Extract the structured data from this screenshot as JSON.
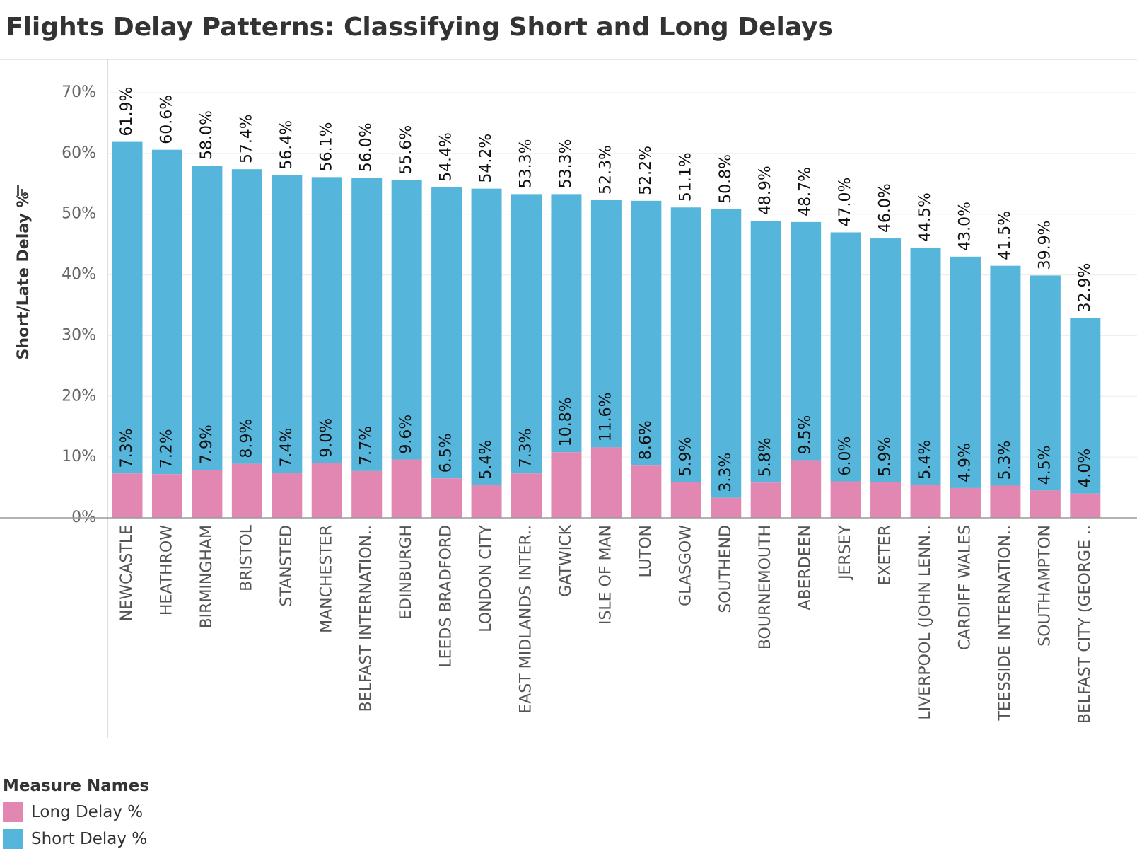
{
  "title": "Flights Delay Patterns: Classifying Short and Long Delays",
  "legend": {
    "title": "Measure Names",
    "items": [
      {
        "label": "Long Delay %",
        "color": "#e287b2"
      },
      {
        "label": "Short Delay %",
        "color": "#55b5db"
      }
    ]
  },
  "chart_data": {
    "type": "bar",
    "stacked": true,
    "ylabel": "Short/Late Delay %",
    "ylim": [
      0,
      70
    ],
    "yticks": [
      "0%",
      "10%",
      "20%",
      "30%",
      "40%",
      "50%",
      "60%",
      "70%"
    ],
    "ytick_values": [
      0,
      10,
      20,
      30,
      40,
      50,
      60,
      70
    ],
    "grid": true,
    "legend_position": "bottom-left",
    "categories": [
      "NEWCASTLE",
      "HEATHROW",
      "BIRMINGHAM",
      "BRISTOL",
      "STANSTED",
      "MANCHESTER",
      "BELFAST INTERNATION..",
      "EDINBURGH",
      "LEEDS BRADFORD",
      "LONDON CITY",
      "EAST MIDLANDS INTER..",
      "GATWICK",
      "ISLE OF MAN",
      "LUTON",
      "GLASGOW",
      "SOUTHEND",
      "BOURNEMOUTH",
      "ABERDEEN",
      "JERSEY",
      "EXETER",
      "LIVERPOOL (JOHN LENN..",
      "CARDIFF WALES",
      "TEESSIDE INTERNATION..",
      "SOUTHAMPTON",
      "BELFAST CITY (GEORGE .."
    ],
    "series": [
      {
        "name": "Long Delay %",
        "color": "#e287b2",
        "values": [
          7.3,
          7.2,
          7.9,
          8.9,
          7.4,
          9.0,
          7.7,
          9.6,
          6.5,
          5.4,
          7.3,
          10.8,
          11.6,
          8.6,
          5.9,
          3.3,
          5.8,
          9.5,
          6.0,
          5.9,
          5.4,
          4.9,
          5.3,
          4.5,
          4.0
        ],
        "labels": [
          "7.3%",
          "7.2%",
          "7.9%",
          "8.9%",
          "7.4%",
          "9.0%",
          "7.7%",
          "9.6%",
          "6.5%",
          "5.4%",
          "7.3%",
          "10.8%",
          "11.6%",
          "8.6%",
          "5.9%",
          "3.3%",
          "5.8%",
          "9.5%",
          "6.0%",
          "5.9%",
          "5.4%",
          "4.9%",
          "5.3%",
          "4.5%",
          "4.0%"
        ]
      },
      {
        "name": "Short Delay %",
        "color": "#55b5db",
        "values": [
          61.9,
          60.6,
          58.0,
          57.4,
          56.4,
          56.1,
          56.0,
          55.6,
          54.4,
          54.2,
          53.3,
          53.3,
          52.3,
          52.2,
          51.1,
          50.8,
          48.9,
          48.7,
          47.0,
          46.0,
          44.5,
          43.0,
          41.5,
          39.9,
          32.9
        ],
        "labels": [
          "61.9%",
          "60.6%",
          "58.0%",
          "57.4%",
          "56.4%",
          "56.1%",
          "56.0%",
          "55.6%",
          "54.4%",
          "54.2%",
          "53.3%",
          "53.3%",
          "52.3%",
          "52.2%",
          "51.1%",
          "50.8%",
          "48.9%",
          "48.7%",
          "47.0%",
          "46.0%",
          "44.5%",
          "43.0%",
          "41.5%",
          "39.9%",
          "32.9%"
        ]
      }
    ]
  }
}
